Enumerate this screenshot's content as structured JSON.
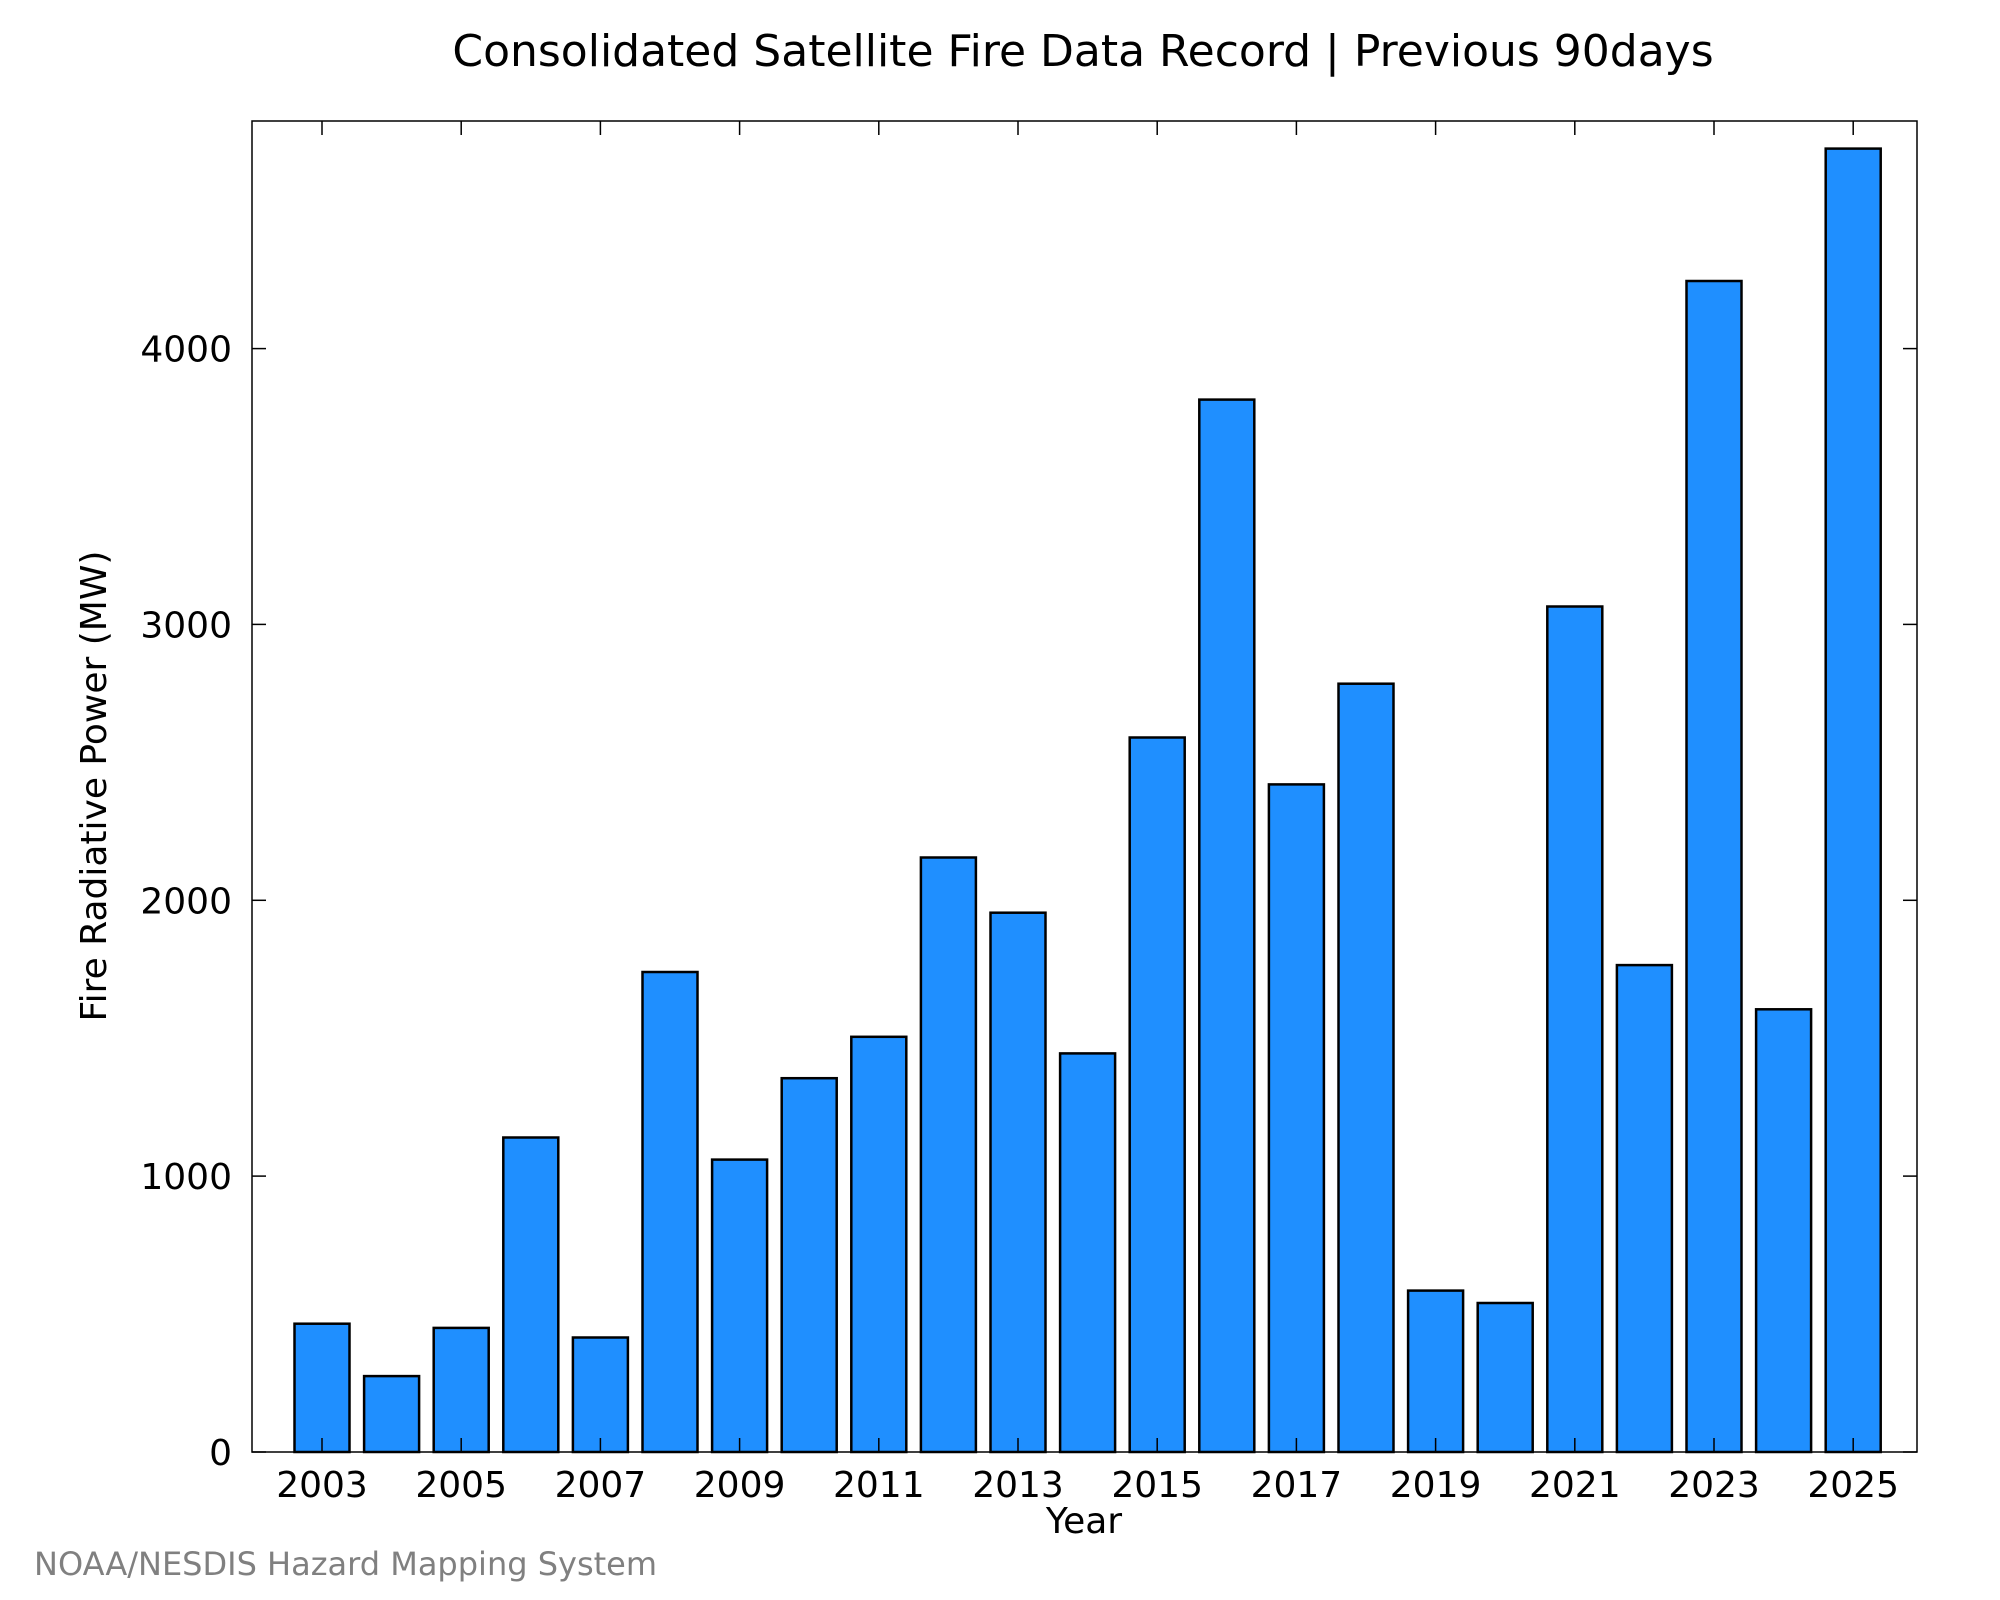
{
  "chart_data": {
    "type": "bar",
    "title": "Consolidated Satellite Fire Data Record | Previous 90days",
    "xlabel": "Year",
    "ylabel": "Fire Radiative Power (MW)",
    "categories": [
      "2003",
      "2004",
      "2005",
      "2006",
      "2007",
      "2008",
      "2009",
      "2010",
      "2011",
      "2012",
      "2013",
      "2014",
      "2015",
      "2016",
      "2017",
      "2018",
      "2019",
      "2020",
      "2021",
      "2022",
      "2023",
      "2024",
      "2025"
    ],
    "x_tick_labels": [
      "2003",
      "2005",
      "2007",
      "2009",
      "2011",
      "2013",
      "2015",
      "2017",
      "2019",
      "2021",
      "2023",
      "2025"
    ],
    "values": [
      465,
      275,
      450,
      1140,
      415,
      1740,
      1060,
      1355,
      1505,
      2155,
      1955,
      1445,
      2590,
      3815,
      2420,
      2785,
      585,
      540,
      3065,
      1765,
      4245,
      1605,
      4725
    ],
    "ylim": [
      0,
      4825
    ],
    "y_ticks": [
      0,
      1000,
      2000,
      3000,
      4000
    ],
    "bar_color": "#1f8fff",
    "bar_edge_color": "#000000",
    "grid": false,
    "legend": "none"
  },
  "credit": "NOAA/NESDIS Hazard Mapping System"
}
